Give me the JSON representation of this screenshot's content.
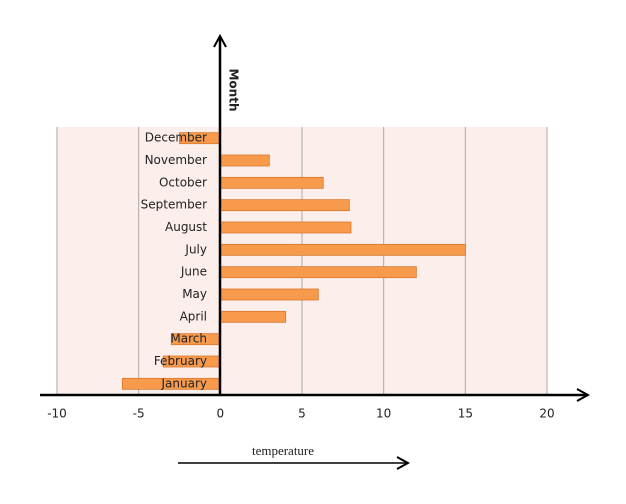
{
  "chart_data": {
    "type": "bar",
    "orientation": "horizontal",
    "x_label": "temperature",
    "y_label": "Month",
    "categories": [
      "December",
      "November",
      "October",
      "September",
      "August",
      "July",
      "June",
      "May",
      "April",
      "March",
      "February",
      "January"
    ],
    "values": [
      -2.5,
      3,
      6.3,
      7.9,
      8,
      15,
      12,
      6,
      4,
      -3,
      -3.5,
      -6
    ],
    "color": "#f79a4c",
    "xlim": [
      -10,
      20
    ],
    "xticks": [
      -10,
      -5,
      0,
      5,
      10,
      15,
      20
    ],
    "grid": true
  }
}
